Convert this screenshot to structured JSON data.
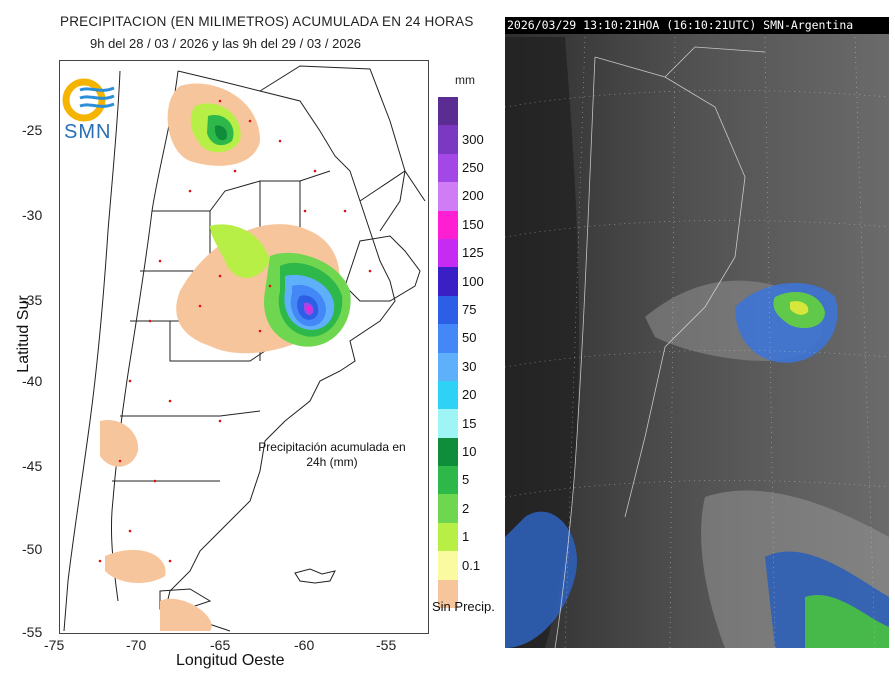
{
  "precip_map": {
    "title_line1": "PRECIPITACION (EN MILIMETROS) ACUMULADA EN 24 HORAS",
    "title_line2": "9h del 28 / 03 / 2026  y las 9h del 29 / 03 / 2026",
    "logo_text": "SMN",
    "y_axis_label": "Latitud Sur",
    "x_axis_label": "Longitud Oeste",
    "y_ticks": [
      "-25",
      "-30",
      "-35",
      "-40",
      "-45",
      "-50",
      "-55"
    ],
    "x_ticks": [
      "-75",
      "-70",
      "-65",
      "-60",
      "-55"
    ],
    "annotation": "Precipitación acumulada en 24h (mm)",
    "legend": {
      "unit": "mm",
      "no_precip_label": "Sin Precip.",
      "classes": [
        {
          "label": "",
          "color": "#5b2c91"
        },
        {
          "label": "300",
          "color": "#7b39c2"
        },
        {
          "label": "250",
          "color": "#a347e6"
        },
        {
          "label": "200",
          "color": "#d07cf5"
        },
        {
          "label": "150",
          "color": "#ff1fd2"
        },
        {
          "label": "125",
          "color": "#c52bf0"
        },
        {
          "label": "100",
          "color": "#3a1fc7"
        },
        {
          "label": "75",
          "color": "#2c5ee6"
        },
        {
          "label": "50",
          "color": "#4488f7"
        },
        {
          "label": "30",
          "color": "#5fb0fa"
        },
        {
          "label": "20",
          "color": "#2fd1f4"
        },
        {
          "label": "15",
          "color": "#9ff5f5"
        },
        {
          "label": "10",
          "color": "#0f8d3a"
        },
        {
          "label": "5",
          "color": "#2fb84a"
        },
        {
          "label": "2",
          "color": "#6fd64f"
        },
        {
          "label": "1",
          "color": "#b7ef46"
        },
        {
          "label": "0.1",
          "color": "#fafaa0"
        },
        {
          "label": "",
          "color": "#f7c59b"
        }
      ]
    }
  },
  "satellite": {
    "header": "2026/03/29 13:10:21HOA (16:10:21UTC) SMN-Argentina"
  }
}
